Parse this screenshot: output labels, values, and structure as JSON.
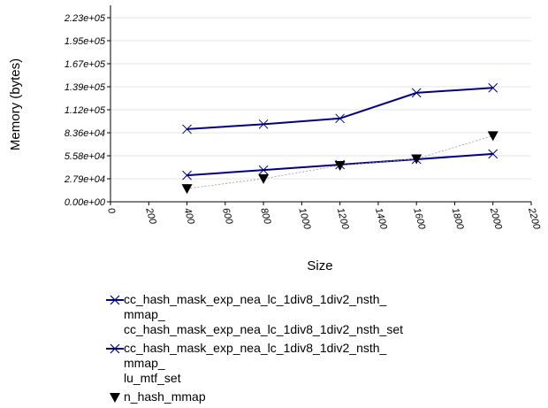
{
  "chart_data": {
    "type": "line",
    "xlabel": "Size",
    "ylabel": "Memory (bytes)",
    "x_ticks": [
      "0",
      "200",
      "400",
      "600",
      "800",
      "1000",
      "1200",
      "1400",
      "1600",
      "1800",
      "2000",
      "2200"
    ],
    "y_ticks": [
      "0.00e+00",
      "2.79e+04",
      "5.58e+04",
      "8.36e+04",
      "1.12e+05",
      "1.39e+05",
      "1.67e+05",
      "1.95e+05",
      "2.23e+05"
    ],
    "xlim": [
      0,
      2200
    ],
    "ylim": [
      0,
      223000
    ],
    "grid": "horizontal",
    "legend_position": "bottom",
    "series": [
      {
        "name": "cc_hash_mask_exp_nea_lc_1div8_1div2_nsth_\nmmap_\ncc_hash_mask_exp_nea_lc_1div8_1div2_nsth_set",
        "marker": "x",
        "color": "#000080",
        "x": [
          400,
          800,
          1200,
          1600,
          2000
        ],
        "y": [
          88000,
          94000,
          101000,
          132000,
          138000
        ]
      },
      {
        "name": "cc_hash_mask_exp_nea_lc_1div8_1div2_nsth_\nmmap_\nlu_mtf_set",
        "marker": "x",
        "color": "#000080",
        "x": [
          400,
          800,
          1200,
          1600,
          2000
        ],
        "y": [
          32000,
          38500,
          45000,
          51500,
          58000
        ]
      },
      {
        "name": "n_hash_mmap",
        "marker": "triangle-down",
        "color": "#000000",
        "line_style": "dotted",
        "x": [
          400,
          800,
          1200,
          1600,
          2000
        ],
        "y": [
          16000,
          28000,
          44000,
          52000,
          80000
        ]
      }
    ]
  }
}
